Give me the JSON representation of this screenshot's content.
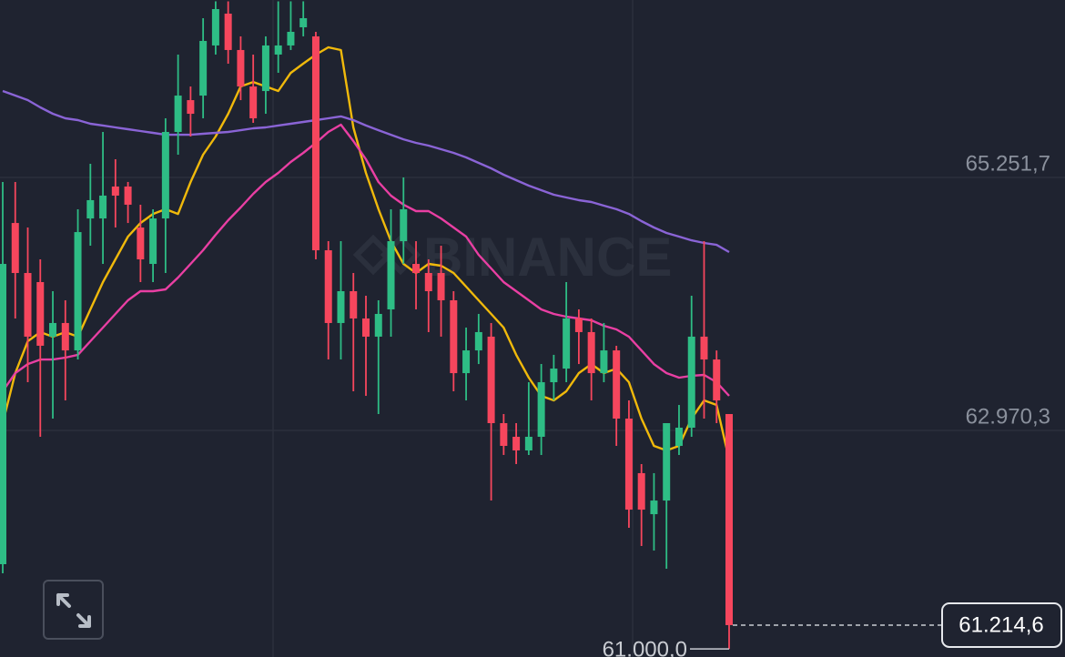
{
  "chart_data": {
    "type": "candlestick",
    "watermark": "BINANCE",
    "ylim": [
      60927,
      66852
    ],
    "yticks": [
      {
        "value": 65251.7,
        "label": "65.251,7"
      },
      {
        "value": 62970.3,
        "label": "62.970,3"
      }
    ],
    "grid": true,
    "up_color": "#2ebd85",
    "down_color": "#f6465d",
    "open": [
      61764,
      64841,
      64390,
      64308,
      63816,
      63939,
      63692,
      64882,
      64882,
      65170,
      65170,
      64800,
      64472,
      64882,
      65662,
      65949,
      65990,
      66442,
      66729,
      66401,
      66072,
      66031,
      66360,
      66442,
      66606,
      66524,
      64595,
      63939,
      64226,
      63980,
      63816,
      64062,
      64677,
      64472,
      64390,
      64390,
      64144,
      63487,
      63692,
      63816,
      63036,
      62913,
      62790,
      62913,
      63405,
      63528,
      63980,
      63857,
      63487,
      63692,
      63077,
      62585,
      62215,
      62338,
      62831,
      62995,
      63816,
      63610,
      63118
    ],
    "high": [
      65211,
      65211,
      64800,
      64513,
      64226,
      64144,
      64965,
      65375,
      65662,
      65416,
      65211,
      65006,
      64965,
      65785,
      66360,
      66072,
      66688,
      66840,
      66840,
      66524,
      66360,
      66524,
      66840,
      66840,
      66840,
      66565,
      64677,
      64677,
      64390,
      64185,
      64144,
      64965,
      65252,
      64677,
      64513,
      64636,
      64226,
      63898,
      64021,
      63939,
      63118,
      63036,
      63405,
      63569,
      63652,
      64308,
      64062,
      63980,
      63939,
      63734,
      63241,
      62667,
      62585,
      63036,
      63200,
      64185,
      64677,
      63692,
      63118
    ],
    "low": [
      61682,
      63980,
      63405,
      62913,
      63077,
      63241,
      63610,
      64636,
      64472,
      64800,
      64841,
      64308,
      64308,
      64390,
      65457,
      65621,
      65785,
      66360,
      66278,
      65949,
      65744,
      65826,
      66195,
      66401,
      66524,
      64513,
      63610,
      63610,
      63323,
      63282,
      63118,
      63816,
      64472,
      64062,
      63857,
      63816,
      63323,
      63241,
      63569,
      62338,
      62749,
      62667,
      62749,
      62749,
      63241,
      63405,
      63569,
      63241,
      63405,
      62831,
      62092,
      61928,
      61887,
      61723,
      62749,
      62913,
      63077,
      63036,
      61000
    ],
    "close": [
      64472,
      64390,
      63816,
      63734,
      63939,
      63692,
      64759,
      65047,
      65088,
      65088,
      65006,
      64513,
      64882,
      65662,
      65990,
      65826,
      66483,
      66770,
      66401,
      66072,
      65785,
      66442,
      66442,
      66565,
      66688,
      64595,
      63939,
      64226,
      63980,
      63816,
      64021,
      64677,
      64965,
      64390,
      64226,
      64144,
      63487,
      63692,
      63857,
      63036,
      62831,
      62790,
      62913,
      63405,
      63528,
      63980,
      63857,
      63487,
      63692,
      63077,
      62256,
      62256,
      62338,
      63036,
      62995,
      63816,
      63610,
      63241,
      61214.6
    ],
    "ma_lines": [
      {
        "color": "#f0b90b",
        "values": [
          63036,
          63487,
          63775,
          63857,
          63816,
          63857,
          63816,
          64062,
          64308,
          64513,
          64718,
          64841,
          64923,
          64965,
          64923,
          65211,
          65457,
          65621,
          65826,
          66072,
          66113,
          66072,
          66031,
          66195,
          66278,
          66360,
          66425,
          66401,
          65703,
          65293,
          64965,
          64677,
          64472,
          64390,
          64472,
          64456,
          64390,
          64267,
          64144,
          64021,
          63898,
          63652,
          63446,
          63282,
          63241,
          63323,
          63487,
          63569,
          63487,
          63528,
          63405,
          63077,
          62831,
          62790,
          62831,
          63077,
          63241,
          63200,
          62708
        ]
      },
      {
        "color": "#e93fa3",
        "values": [
          63323,
          63487,
          63569,
          63610,
          63610,
          63627,
          63652,
          63775,
          63898,
          64021,
          64144,
          64226,
          64226,
          64242,
          64349,
          64472,
          64595,
          64735,
          64866,
          64981,
          65104,
          65211,
          65293,
          65391,
          65473,
          65564,
          65662,
          65728,
          65580,
          65416,
          65211,
          65088,
          65006,
          64948,
          64948,
          64882,
          64800,
          64718,
          64554,
          64431,
          64308,
          64226,
          64144,
          64062,
          64021,
          63996,
          63980,
          63963,
          63914,
          63881,
          63816,
          63692,
          63569,
          63487,
          63446,
          63463,
          63471,
          63405,
          63282
        ]
      },
      {
        "color": "#8a64d6",
        "values": [
          66031,
          65990,
          65949,
          65884,
          65826,
          65785,
          65769,
          65736,
          65720,
          65703,
          65687,
          65670,
          65654,
          65637,
          65637,
          65637,
          65646,
          65654,
          65662,
          65678,
          65695,
          65703,
          65720,
          65736,
          65752,
          65769,
          65785,
          65802,
          65769,
          65720,
          65678,
          65637,
          65596,
          65564,
          65539,
          65506,
          65473,
          65432,
          65383,
          65334,
          65276,
          65227,
          65178,
          65137,
          65096,
          65071,
          65047,
          65030,
          64997,
          64965,
          64923,
          64858,
          64800,
          64751,
          64718,
          64685,
          64661,
          64644,
          64579
        ]
      }
    ],
    "last_price": {
      "value": 61214.6,
      "label": "61.214,6"
    },
    "low_marker": {
      "value": 61000,
      "label": "61.000,0"
    }
  }
}
